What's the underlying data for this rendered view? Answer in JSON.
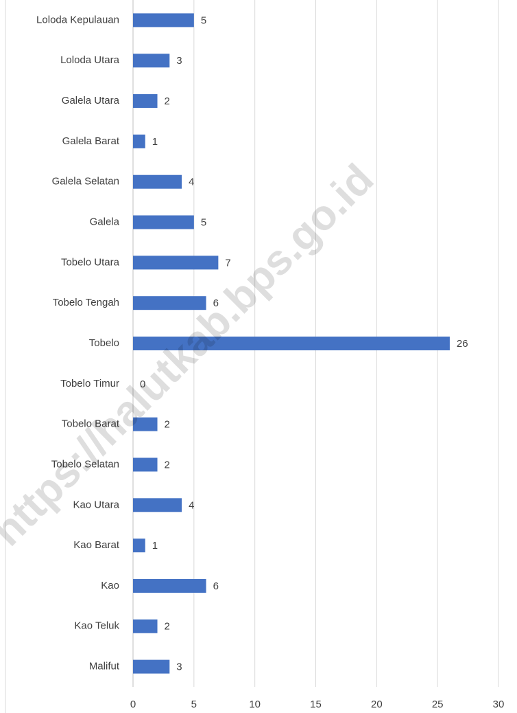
{
  "chart_data": {
    "type": "bar",
    "orientation": "horizontal",
    "categories": [
      "Loloda Kepulauan",
      "Loloda Utara",
      "Galela Utara",
      "Galela Barat",
      "Galela Selatan",
      "Galela",
      "Tobelo Utara",
      "Tobelo Tengah",
      "Tobelo",
      "Tobelo Timur",
      "Tobelo Barat",
      "Tobelo Selatan",
      "Kao Utara",
      "Kao Barat",
      "Kao",
      "Kao Teluk",
      "Malifut"
    ],
    "values": [
      5,
      3,
      2,
      1,
      4,
      5,
      7,
      6,
      26,
      0,
      2,
      2,
      4,
      1,
      6,
      2,
      3
    ],
    "color": "#4472c4",
    "xlim": [
      0,
      30
    ],
    "xticks": [
      0,
      5,
      10,
      15,
      20,
      25,
      30
    ],
    "grid": true,
    "watermark": "https://halutkab.bps.go.id"
  }
}
